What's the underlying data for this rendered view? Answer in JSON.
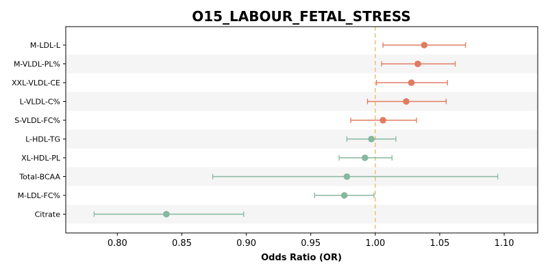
{
  "chart_data": {
    "type": "forest",
    "title": "O15_LABOUR_FETAL_STRESS",
    "xlabel": "Odds Ratio (OR)",
    "ylabel": "",
    "xlim": [
      0.76,
      1.126
    ],
    "xticks": [
      "0.80",
      "0.85",
      "0.90",
      "0.95",
      "1.00",
      "1.05",
      "1.10"
    ],
    "reference_line": 1.0,
    "grid": false,
    "row_shading": "alternating",
    "colors": {
      "positive": "#e07b61",
      "negative": "#86b89f",
      "reference": "#f0c27b",
      "band": "#f5f5f5"
    },
    "rows": [
      {
        "label": "M-LDL-L",
        "or": 1.038,
        "lo": 1.006,
        "hi": 1.07
      },
      {
        "label": "M-VLDL-PL%",
        "or": 1.033,
        "lo": 1.005,
        "hi": 1.062
      },
      {
        "label": "XXL-VLDL-CE",
        "or": 1.028,
        "lo": 1.001,
        "hi": 1.056
      },
      {
        "label": "L-VLDL-C%",
        "or": 1.024,
        "lo": 0.994,
        "hi": 1.055
      },
      {
        "label": "S-VLDL-FC%",
        "or": 1.006,
        "lo": 0.981,
        "hi": 1.032
      },
      {
        "label": "L-HDL-TG",
        "or": 0.997,
        "lo": 0.978,
        "hi": 1.016
      },
      {
        "label": "XL-HDL-PL",
        "or": 0.992,
        "lo": 0.972,
        "hi": 1.013
      },
      {
        "label": "Total-BCAA",
        "or": 0.978,
        "lo": 0.874,
        "hi": 1.095
      },
      {
        "label": "M-LDL-FC%",
        "or": 0.976,
        "lo": 0.953,
        "hi": 0.999
      },
      {
        "label": "Citrate",
        "or": 0.838,
        "lo": 0.782,
        "hi": 0.898
      }
    ]
  }
}
